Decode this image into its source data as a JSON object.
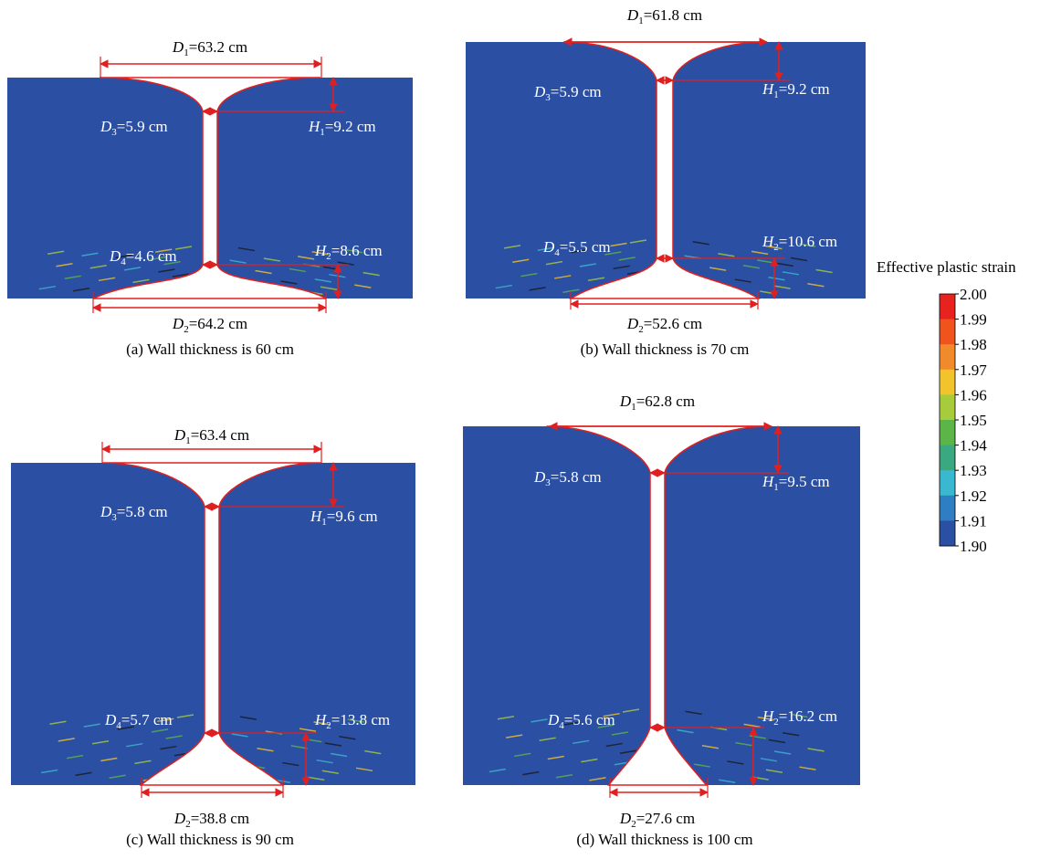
{
  "panels": [
    {
      "caption": "(a) Wall thickness is 60 cm",
      "d1": {
        "symbol": "D",
        "sub": "1",
        "text": "=63.2 cm"
      },
      "d3": {
        "symbol": "D",
        "sub": "3",
        "text": "=5.9 cm"
      },
      "h1": {
        "symbol": "H",
        "sub": "1",
        "text": "=9.2 cm"
      },
      "d4": {
        "symbol": "D",
        "sub": "4",
        "text": "=4.6 cm"
      },
      "h2": {
        "symbol": "H",
        "sub": "2",
        "text": "=8.6 cm"
      },
      "d2": {
        "symbol": "D",
        "sub": "2",
        "text": "=64.2 cm"
      }
    },
    {
      "caption": "(b) Wall thickness is 70 cm",
      "d1": {
        "symbol": "D",
        "sub": "1",
        "text": "=61.8 cm"
      },
      "d3": {
        "symbol": "D",
        "sub": "3",
        "text": "=5.9 cm"
      },
      "h1": {
        "symbol": "H",
        "sub": "1",
        "text": "=9.2 cm"
      },
      "d4": {
        "symbol": "D",
        "sub": "4",
        "text": "=5.5 cm"
      },
      "h2": {
        "symbol": "H",
        "sub": "2",
        "text": "=10.6 cm"
      },
      "d2": {
        "symbol": "D",
        "sub": "2",
        "text": "=52.6 cm"
      }
    },
    {
      "caption": "(c) Wall thickness is 90 cm",
      "d1": {
        "symbol": "D",
        "sub": "1",
        "text": "=63.4 cm"
      },
      "d3": {
        "symbol": "D",
        "sub": "3",
        "text": "=5.8 cm"
      },
      "h1": {
        "symbol": "H",
        "sub": "1",
        "text": "=9.6 cm"
      },
      "d4": {
        "symbol": "D",
        "sub": "4",
        "text": "=5.7 cm"
      },
      "h2": {
        "symbol": "H",
        "sub": "2",
        "text": "=13.8 cm"
      },
      "d2": {
        "symbol": "D",
        "sub": "2",
        "text": "=38.8 cm"
      }
    },
    {
      "caption": "(d) Wall thickness is 100 cm",
      "d1": {
        "symbol": "D",
        "sub": "1",
        "text": "=62.8 cm"
      },
      "d3": {
        "symbol": "D",
        "sub": "3",
        "text": "=5.8 cm"
      },
      "h1": {
        "symbol": "H",
        "sub": "1",
        "text": "=9.5 cm"
      },
      "d4": {
        "symbol": "D",
        "sub": "4",
        "text": "=5.6 cm"
      },
      "h2": {
        "symbol": "H",
        "sub": "2",
        "text": "=16.2 cm"
      },
      "d2": {
        "symbol": "D",
        "sub": "2",
        "text": "=27.6 cm"
      }
    }
  ],
  "colorbar": {
    "title": "Effective plastic strain",
    "ticks": [
      {
        "value": 2.0,
        "label": "2.00"
      },
      {
        "value": 1.99,
        "label": "1.99"
      },
      {
        "value": 1.98,
        "label": "1.98"
      },
      {
        "value": 1.97,
        "label": "1.97"
      },
      {
        "value": 1.96,
        "label": "1.96"
      },
      {
        "value": 1.95,
        "label": "1.95"
      },
      {
        "value": 1.94,
        "label": "1.94"
      },
      {
        "value": 1.93,
        "label": "1.93"
      },
      {
        "value": 1.92,
        "label": "1.92"
      },
      {
        "value": 1.91,
        "label": "1.91"
      },
      {
        "value": 1.9,
        "label": "1.90"
      }
    ],
    "colors": [
      "#e8231f",
      "#f0531c",
      "#f08a2a",
      "#f2c32b",
      "#a6cc3c",
      "#5bb548",
      "#3aa880",
      "#3ab8cf",
      "#2f7ec3",
      "#2b4fa3"
    ]
  }
}
